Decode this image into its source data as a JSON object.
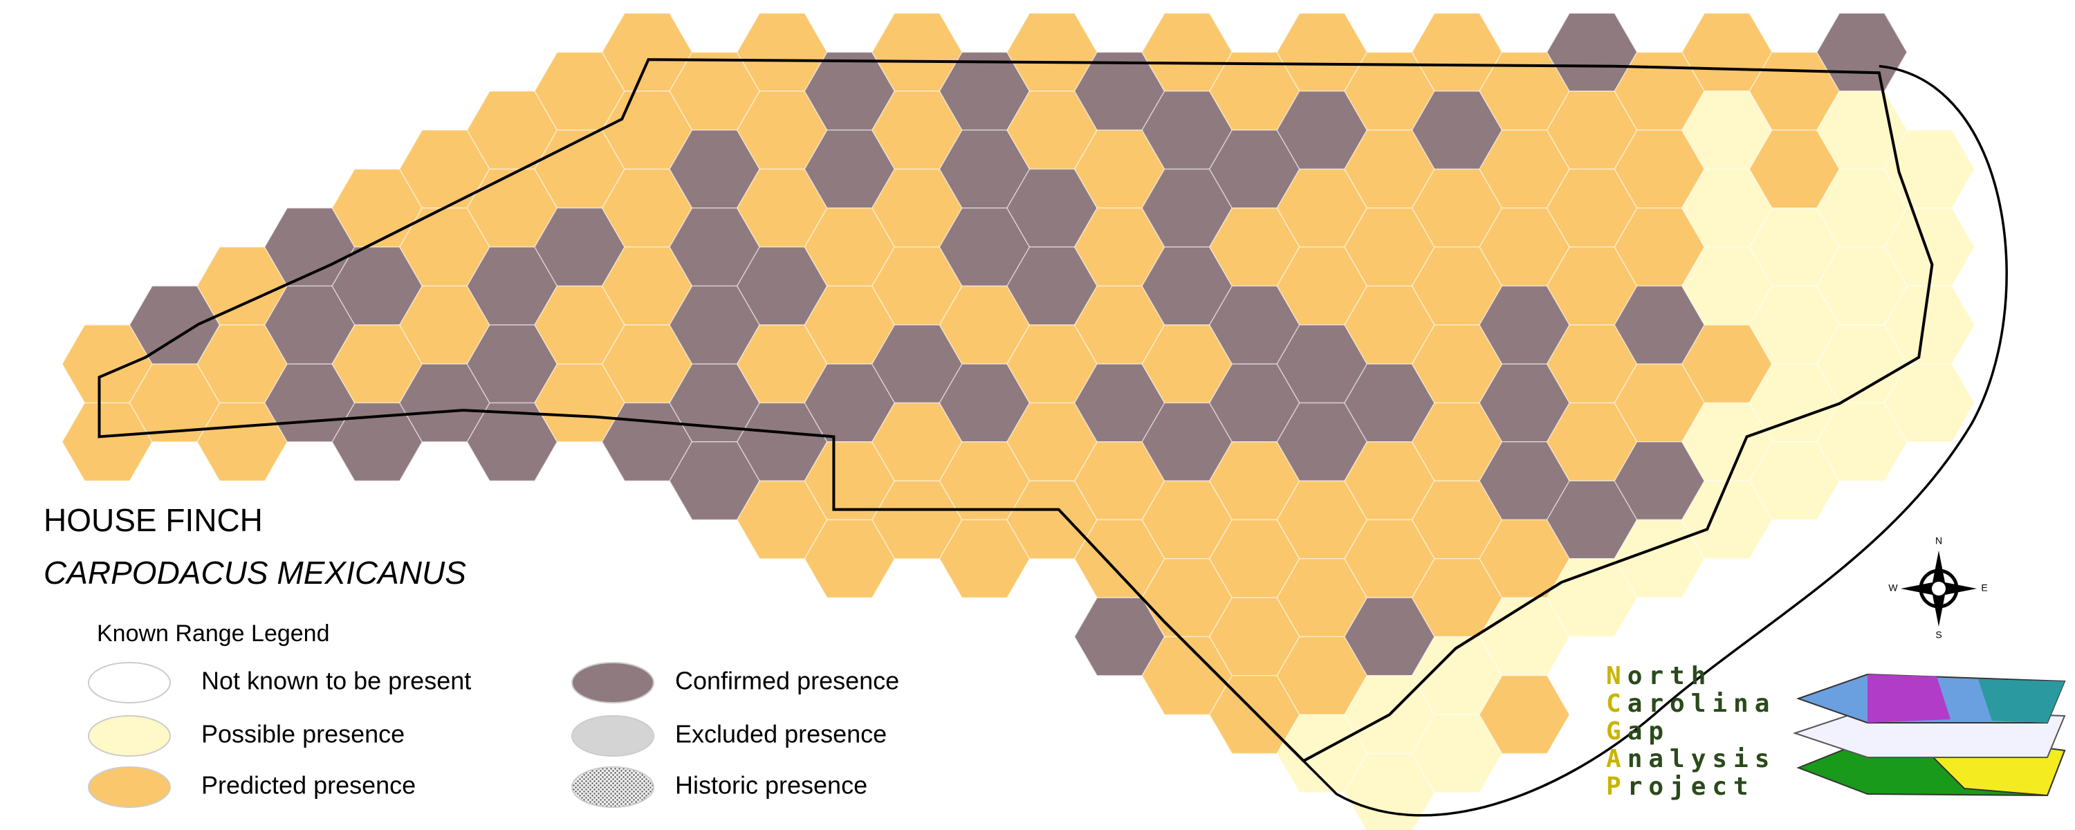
{
  "title": "HOUSE FINCH",
  "subtitle": "CARPODACUS MEXICANUS",
  "legend": {
    "title": "Known Range Legend",
    "items": [
      {
        "label": "Not known to be present",
        "color": "#ffffff"
      },
      {
        "label": "Possible presence",
        "color": "#fff8c8"
      },
      {
        "label": "Predicted presence",
        "color": "#fbc76c"
      },
      {
        "label": "Confirmed presence",
        "color": "#8f7a80"
      },
      {
        "label": "Excluded presence",
        "color": "#d4d4d4"
      },
      {
        "label": "Historic presence",
        "color": "#d0d0d0",
        "pattern": "stipple"
      }
    ]
  },
  "compass": {
    "n": "N",
    "s": "S",
    "e": "E",
    "w": "W"
  },
  "logo": {
    "lines": [
      "North",
      "Carolina",
      "Gap",
      "Analysis",
      "Project"
    ]
  }
}
